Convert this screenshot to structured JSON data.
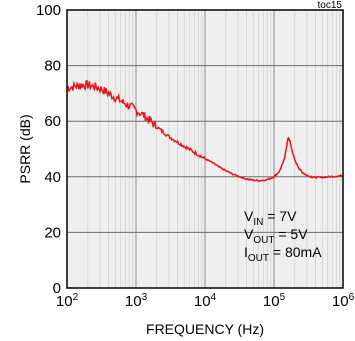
{
  "chart_data": {
    "type": "line",
    "tag": "toc15",
    "xlabel": "FREQUENCY (Hz)",
    "ylabel": "PSRR (dB)",
    "x_scale": "log",
    "xlim": [
      100,
      1000000
    ],
    "ylim": [
      0,
      100
    ],
    "grid": "on",
    "x_ticks": [
      {
        "base": "10",
        "exp": "2",
        "value": 100
      },
      {
        "base": "10",
        "exp": "3",
        "value": 1000
      },
      {
        "base": "10",
        "exp": "4",
        "value": 10000
      },
      {
        "base": "10",
        "exp": "5",
        "value": 100000
      },
      {
        "base": "10",
        "exp": "6",
        "value": 1000000
      }
    ],
    "y_ticks": [
      {
        "label": "0",
        "value": 0
      },
      {
        "label": "20",
        "value": 20
      },
      {
        "label": "40",
        "value": 40
      },
      {
        "label": "60",
        "value": 60
      },
      {
        "label": "80",
        "value": 80
      },
      {
        "label": "100",
        "value": 100
      }
    ],
    "annotation": [
      {
        "main": "V",
        "sub": "IN",
        "rest": " = 7V"
      },
      {
        "main": "V",
        "sub": "OUT",
        "rest": " = 5V"
      },
      {
        "main": "I",
        "sub": "OUT",
        "rest": " = 80mA"
      }
    ],
    "series": [
      {
        "color": "#e8141c",
        "x": [
          100,
          130,
          160,
          200,
          250,
          320,
          400,
          500,
          630,
          800,
          1000,
          1300,
          1600,
          2000,
          2500,
          3200,
          4000,
          5000,
          6300,
          8000,
          10000,
          13000,
          16000,
          20000,
          25000,
          32000,
          40000,
          50000,
          63000,
          80000,
          100000,
          120000,
          140000,
          150000,
          160000,
          170000,
          180000,
          200000,
          230000,
          260000,
          300000,
          350000,
          400000,
          500000,
          630000,
          800000,
          1000000
        ],
        "y": [
          72,
          72.5,
          73,
          73,
          72.5,
          71.5,
          70,
          68.5,
          67,
          65.5,
          64,
          62,
          60,
          58,
          56,
          54,
          52.5,
          51,
          49.5,
          48,
          46.5,
          45,
          43.5,
          42.2,
          41,
          40,
          39.2,
          38.8,
          38.6,
          39,
          40,
          42,
          46,
          50,
          54,
          53,
          50,
          46,
          43,
          41.5,
          40.5,
          40,
          39.8,
          39.8,
          40,
          40.2,
          40.5
        ]
      }
    ]
  }
}
